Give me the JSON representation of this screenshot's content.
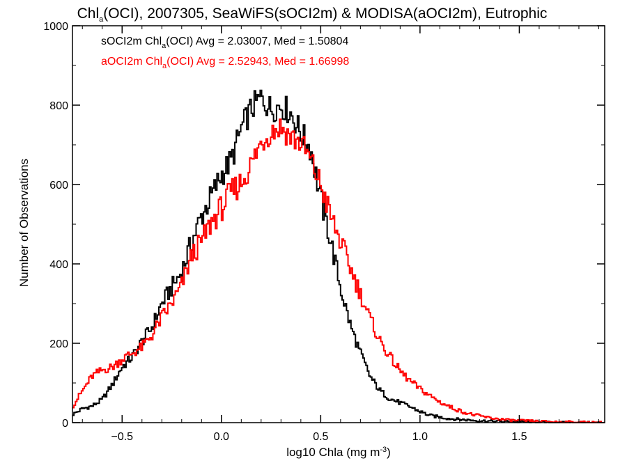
{
  "chart_data": {
    "type": "histogram",
    "title": {
      "prefix": "Chl",
      "sub": "a",
      "suffix": "(OCI), 2007305, SeaWiFS(sOCI2m) & MODISA(aOCI2m), Eutrophic"
    },
    "xlabel": {
      "prefix": "log10 Chla (mg m",
      "sup": "-3",
      "suffix": ")"
    },
    "ylabel": "Number of Observations",
    "xlim": [
      -0.75,
      1.93
    ],
    "ylim": [
      0,
      1000
    ],
    "xticks": [
      -0.5,
      0.0,
      0.5,
      1.0,
      1.5
    ],
    "xtick_labels": [
      "−0.5",
      "0.0",
      "0.5",
      "1.0",
      "1.5"
    ],
    "yticks": [
      0,
      200,
      400,
      600,
      800,
      1000
    ],
    "ytick_labels": [
      "0",
      "200",
      "400",
      "600",
      "800",
      "1000"
    ],
    "grid": false,
    "legend_position": "top-left",
    "series": [
      {
        "name": "sOCI2m",
        "color": "#000000",
        "label_prefix": "sOCI2m Chl",
        "label_sub": "a",
        "label_suffix": "(OCI) Avg = 2.03007, Med = 1.50804",
        "points": [
          [
            -0.75,
            20
          ],
          [
            -0.7,
            35
          ],
          [
            -0.65,
            42
          ],
          [
            -0.6,
            58
          ],
          [
            -0.55,
            95
          ],
          [
            -0.5,
            140
          ],
          [
            -0.45,
            165
          ],
          [
            -0.4,
            205
          ],
          [
            -0.35,
            240
          ],
          [
            -0.3,
            300
          ],
          [
            -0.25,
            340
          ],
          [
            -0.2,
            380
          ],
          [
            -0.15,
            455
          ],
          [
            -0.1,
            520
          ],
          [
            -0.05,
            570
          ],
          [
            0.0,
            625
          ],
          [
            0.05,
            660
          ],
          [
            0.1,
            740
          ],
          [
            0.15,
            790
          ],
          [
            0.2,
            820
          ],
          [
            0.25,
            790
          ],
          [
            0.3,
            800
          ],
          [
            0.35,
            780
          ],
          [
            0.4,
            730
          ],
          [
            0.45,
            690
          ],
          [
            0.5,
            565
          ],
          [
            0.55,
            460
          ],
          [
            0.6,
            340
          ],
          [
            0.65,
            245
          ],
          [
            0.7,
            175
          ],
          [
            0.75,
            115
          ],
          [
            0.8,
            80
          ],
          [
            0.85,
            60
          ],
          [
            0.9,
            50
          ],
          [
            0.95,
            40
          ],
          [
            1.0,
            28
          ],
          [
            1.05,
            18
          ],
          [
            1.1,
            14
          ],
          [
            1.15,
            10
          ],
          [
            1.2,
            8
          ],
          [
            1.3,
            5
          ],
          [
            1.4,
            3
          ],
          [
            1.5,
            2
          ],
          [
            1.6,
            1
          ],
          [
            1.7,
            0
          ],
          [
            1.93,
            0
          ]
        ]
      },
      {
        "name": "aOCI2m",
        "color": "#ff0000",
        "label_prefix": "aOCI2m Chl",
        "label_sub": "a",
        "label_suffix": "(OCI) Avg = 2.52943, Med = 1.66998",
        "points": [
          [
            -0.75,
            40
          ],
          [
            -0.7,
            80
          ],
          [
            -0.65,
            118
          ],
          [
            -0.6,
            132
          ],
          [
            -0.55,
            140
          ],
          [
            -0.5,
            160
          ],
          [
            -0.45,
            175
          ],
          [
            -0.4,
            190
          ],
          [
            -0.35,
            220
          ],
          [
            -0.3,
            265
          ],
          [
            -0.25,
            300
          ],
          [
            -0.2,
            345
          ],
          [
            -0.15,
            420
          ],
          [
            -0.1,
            455
          ],
          [
            -0.05,
            505
          ],
          [
            0.0,
            540
          ],
          [
            0.05,
            580
          ],
          [
            0.1,
            605
          ],
          [
            0.15,
            650
          ],
          [
            0.2,
            705
          ],
          [
            0.25,
            735
          ],
          [
            0.3,
            745
          ],
          [
            0.35,
            720
          ],
          [
            0.4,
            705
          ],
          [
            0.45,
            660
          ],
          [
            0.5,
            600
          ],
          [
            0.55,
            520
          ],
          [
            0.6,
            455
          ],
          [
            0.65,
            390
          ],
          [
            0.7,
            325
          ],
          [
            0.75,
            260
          ],
          [
            0.8,
            205
          ],
          [
            0.85,
            165
          ],
          [
            0.9,
            130
          ],
          [
            0.95,
            105
          ],
          [
            1.0,
            85
          ],
          [
            1.05,
            68
          ],
          [
            1.1,
            52
          ],
          [
            1.15,
            40
          ],
          [
            1.2,
            30
          ],
          [
            1.25,
            22
          ],
          [
            1.3,
            17
          ],
          [
            1.35,
            12
          ],
          [
            1.4,
            9
          ],
          [
            1.45,
            6
          ],
          [
            1.5,
            5
          ],
          [
            1.6,
            3
          ],
          [
            1.7,
            2
          ],
          [
            1.8,
            1
          ],
          [
            1.93,
            0
          ]
        ]
      }
    ]
  }
}
